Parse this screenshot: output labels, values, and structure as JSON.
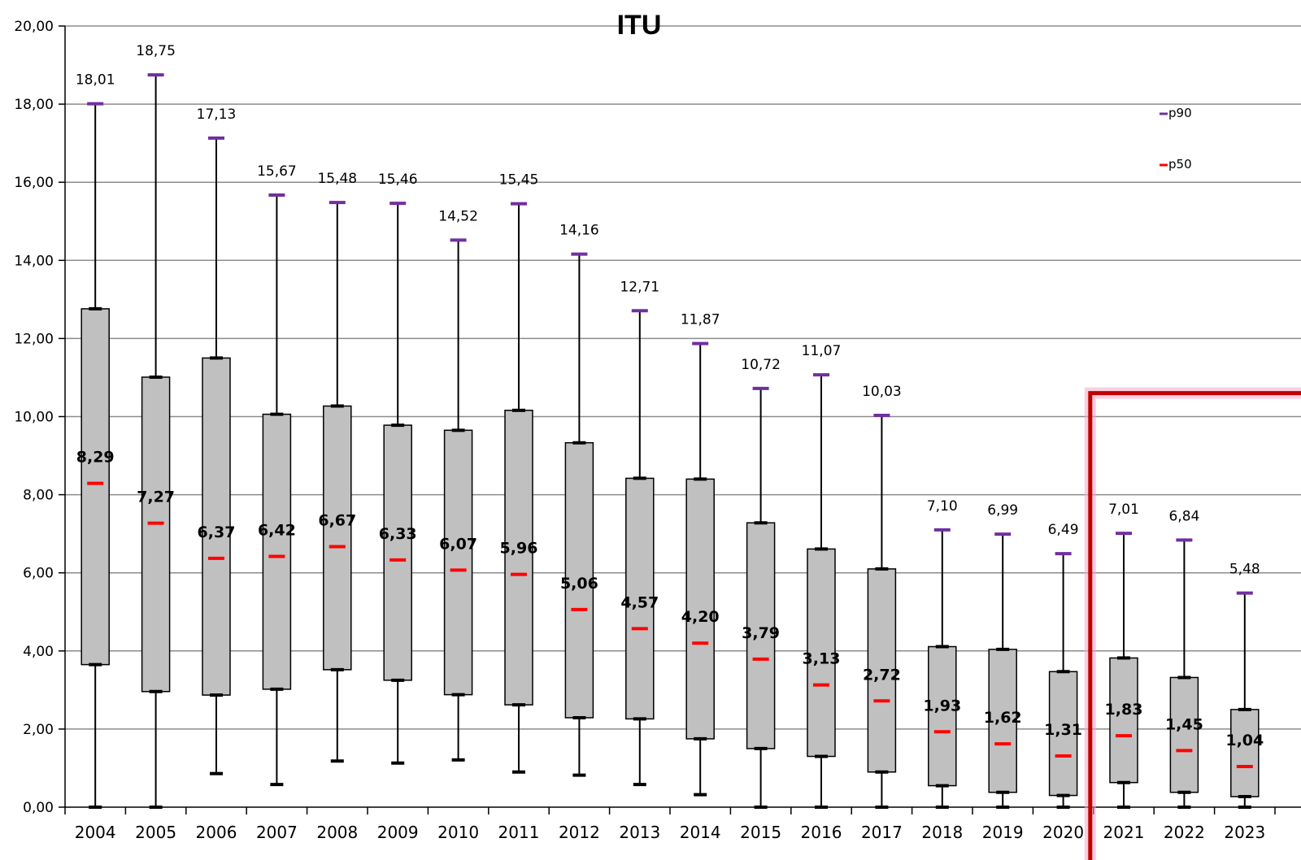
{
  "chart_data": {
    "type": "boxplot",
    "title": "ITU",
    "xlabel": "",
    "ylabel": "",
    "ylim": [
      0,
      20
    ],
    "y_ticks": [
      "0,00",
      "2,00",
      "4,00",
      "6,00",
      "8,00",
      "10,00",
      "12,00",
      "14,00",
      "16,00",
      "18,00",
      "20,00"
    ],
    "grid": true,
    "legend": {
      "position": "top-right",
      "entries": [
        "p90",
        "p50"
      ]
    },
    "colors": {
      "box": "#C0C0C0",
      "p90": "#7030A0",
      "p50": "#FF0000",
      "highlight": "#C00000"
    },
    "highlight_years": [
      "2021",
      "2022",
      "2023"
    ],
    "categories": [
      "2004",
      "2005",
      "2006",
      "2007",
      "2008",
      "2009",
      "2010",
      "2011",
      "2012",
      "2013",
      "2014",
      "2015",
      "2016",
      "2017",
      "2018",
      "2019",
      "2020",
      "2021",
      "2022",
      "2023"
    ],
    "series": {
      "min": [
        0,
        0,
        0.86,
        0.58,
        1.18,
        1.13,
        1.21,
        0.9,
        0.82,
        0.58,
        0.32,
        0,
        0,
        0,
        0,
        0,
        0,
        0,
        0,
        0
      ],
      "q1": [
        3.65,
        2.96,
        2.87,
        3.02,
        3.52,
        3.25,
        2.88,
        2.62,
        2.29,
        2.26,
        1.75,
        1.5,
        1.3,
        0.9,
        0.55,
        0.38,
        0.3,
        0.63,
        0.38,
        0.27
      ],
      "p50": [
        8.29,
        7.27,
        6.37,
        6.42,
        6.67,
        6.33,
        6.07,
        5.96,
        5.06,
        4.57,
        4.2,
        3.79,
        3.13,
        2.72,
        1.93,
        1.62,
        1.31,
        1.83,
        1.45,
        1.04
      ],
      "q3": [
        12.76,
        11.01,
        11.5,
        10.06,
        10.27,
        9.78,
        9.65,
        10.16,
        9.33,
        8.42,
        8.4,
        7.28,
        6.61,
        6.1,
        4.11,
        4.04,
        3.47,
        3.82,
        3.32,
        2.5
      ],
      "p90": [
        18.01,
        18.75,
        17.13,
        15.67,
        15.48,
        15.46,
        14.52,
        15.45,
        14.16,
        12.71,
        11.87,
        10.72,
        11.07,
        10.03,
        7.1,
        6.99,
        6.49,
        7.01,
        6.84,
        5.48
      ],
      "p50_labels": [
        "8,29",
        "7,27",
        "6,37",
        "6,42",
        "6,67",
        "6,33",
        "6,07",
        "5,96",
        "5,06",
        "4,57",
        "4,20",
        "3,79",
        "3,13",
        "2,72",
        "1,93",
        "1,62",
        "1,31",
        "1,83",
        "1,45",
        "1,04"
      ],
      "p90_labels": [
        "18,01",
        "18,75",
        "17,13",
        "15,67",
        "15,48",
        "15,46",
        "14,52",
        "15,45",
        "14,16",
        "12,71",
        "11,87",
        "10,72",
        "11,07",
        "10,03",
        "7,10",
        "6,99",
        "6,49",
        "7,01",
        "6,84",
        "5,48"
      ]
    }
  }
}
